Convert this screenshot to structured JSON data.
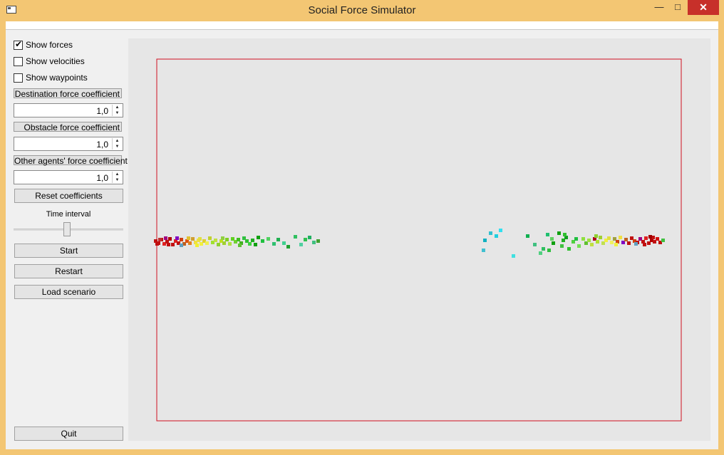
{
  "window": {
    "title": "Social Force Simulator",
    "minimize_glyph": "—",
    "maximize_glyph": "□",
    "close_glyph": "✕"
  },
  "controls": {
    "show_forces": {
      "label": "Show forces",
      "checked": true
    },
    "show_velocities": {
      "label": "Show velocities",
      "checked": false
    },
    "show_waypoints": {
      "label": "Show waypoints",
      "checked": false
    },
    "destination": {
      "label": "Destination force coefficient",
      "value": "1,0"
    },
    "obstacle": {
      "label": "Obstacle force coefficient",
      "value": "1,0"
    },
    "other_agents": {
      "label": "Other agents' force coefficient",
      "value": "1,0"
    },
    "reset_label": "Reset coefficients",
    "time_interval_label": "Time interval",
    "start_label": "Start",
    "restart_label": "Restart",
    "load_label": "Load scenario",
    "quit_label": "Quit"
  },
  "simulation": {
    "boundary_color": "#d01020",
    "left_group": [
      [
        "#c01010",
        0,
        0
      ],
      [
        "#c01010",
        4,
        3
      ],
      [
        "#c01010",
        8,
        -2
      ],
      [
        "#e02020",
        12,
        4
      ],
      [
        "#c01010",
        16,
        1
      ],
      [
        "#b00000",
        20,
        -3
      ],
      [
        "#c01010",
        24,
        5
      ],
      [
        "#e02020",
        28,
        0
      ],
      [
        "#c01010",
        32,
        3
      ],
      [
        "#d04010",
        36,
        -2
      ],
      [
        "#c06020",
        40,
        4
      ],
      [
        "#e05010",
        44,
        0
      ],
      [
        "#e08020",
        48,
        3
      ],
      [
        "#d0a030",
        52,
        -3
      ],
      [
        "#f0e040",
        56,
        2
      ],
      [
        "#f0e040",
        60,
        -1
      ],
      [
        "#f0f040",
        64,
        4
      ],
      [
        "#e0d030",
        68,
        0
      ],
      [
        "#f0f050",
        72,
        3
      ],
      [
        "#c0d030",
        76,
        -4
      ],
      [
        "#a0e030",
        80,
        2
      ],
      [
        "#c0e040",
        84,
        -1
      ],
      [
        "#90d030",
        88,
        5
      ],
      [
        "#c0e020",
        92,
        0
      ],
      [
        "#a0d030",
        96,
        3
      ],
      [
        "#80d020",
        100,
        -2
      ],
      [
        "#b0e040",
        104,
        4
      ],
      [
        "#60d020",
        108,
        -3
      ],
      [
        "#70d030",
        112,
        1
      ],
      [
        "#40c020",
        116,
        -2
      ],
      [
        "#40b020",
        120,
        3
      ],
      [
        "#30c040",
        124,
        -4
      ],
      [
        "#30c030",
        128,
        0
      ],
      [
        "#40d040",
        132,
        4
      ],
      [
        "#20b020",
        136,
        -1
      ],
      [
        "#10a010",
        140,
        5
      ],
      [
        "#10a010",
        144,
        -5
      ],
      [
        "#20c040",
        150,
        0
      ],
      [
        "#50d060",
        158,
        -3
      ],
      [
        "#30c070",
        166,
        4
      ],
      [
        "#20b050",
        172,
        -2
      ],
      [
        "#40d090",
        180,
        3
      ],
      [
        "#20a030",
        186,
        8
      ],
      [
        "#30c060",
        196,
        -6
      ],
      [
        "#50d0a0",
        204,
        5
      ],
      [
        "#30c050",
        210,
        -2
      ],
      [
        "#20b060",
        216,
        -5
      ],
      [
        "#40c080",
        222,
        2
      ],
      [
        "#40a030",
        228,
        0
      ],
      [
        "#c03030",
        6,
        -2
      ],
      [
        "#a00080",
        14,
        -4
      ],
      [
        "#8000c0",
        30,
        -4
      ],
      [
        "#60a0c0",
        36,
        6
      ],
      [
        "#c01010",
        2,
        4
      ],
      [
        "#f0f030",
        58,
        6
      ],
      [
        "#e0e040",
        62,
        -3
      ],
      [
        "#90d040",
        94,
        -4
      ],
      [
        "#60c030",
        118,
        6
      ],
      [
        "#e0c030",
        46,
        -4
      ],
      [
        "#c01010",
        18,
        5
      ]
    ],
    "right_group": [
      [
        "#10b0c0",
        0,
        0
      ],
      [
        "#30c0d0",
        8,
        -10
      ],
      [
        "#20d0e0",
        16,
        -6
      ],
      [
        "#30e0f0",
        22,
        -14
      ],
      [
        "#40c0d0",
        -2,
        14
      ],
      [
        "#40e0e0",
        40,
        22
      ],
      [
        "#10b050",
        60,
        -6
      ],
      [
        "#40c080",
        70,
        6
      ],
      [
        "#50d080",
        78,
        18
      ],
      [
        "#30c060",
        82,
        12
      ],
      [
        "#20c070",
        88,
        -8
      ],
      [
        "#10a010",
        96,
        4
      ],
      [
        "#30c040",
        90,
        14
      ],
      [
        "#60d060",
        94,
        -2
      ],
      [
        "#10a010",
        104,
        -10
      ],
      [
        "#40c040",
        108,
        8
      ],
      [
        "#20b020",
        110,
        0
      ],
      [
        "#10a020",
        114,
        -4
      ],
      [
        "#30c030",
        118,
        12
      ],
      [
        "#50d040",
        124,
        2
      ],
      [
        "#20c040",
        128,
        -2
      ],
      [
        "#70e050",
        132,
        8
      ],
      [
        "#90e040",
        138,
        -2
      ],
      [
        "#60c030",
        142,
        4
      ],
      [
        "#a0e040",
        146,
        0
      ],
      [
        "#c0e040",
        150,
        6
      ],
      [
        "#b00020",
        154,
        -2
      ],
      [
        "#b0e030",
        158,
        2
      ],
      [
        "#a0d030",
        162,
        -4
      ],
      [
        "#c0e050",
        166,
        4
      ],
      [
        "#f0f040",
        170,
        0
      ],
      [
        "#e0e040",
        174,
        -3
      ],
      [
        "#f0f060",
        178,
        3
      ],
      [
        "#a0a040",
        182,
        -2
      ],
      [
        "#d04010",
        186,
        2
      ],
      [
        "#f0e040",
        190,
        -4
      ],
      [
        "#8000c0",
        194,
        3
      ],
      [
        "#c06020",
        198,
        -1
      ],
      [
        "#c01010",
        202,
        4
      ],
      [
        "#c01010",
        206,
        -3
      ],
      [
        "#d04010",
        210,
        1
      ],
      [
        "#c01010",
        214,
        3
      ],
      [
        "#a00080",
        218,
        -2
      ],
      [
        "#c01010",
        222,
        2
      ],
      [
        "#e02020",
        226,
        -3
      ],
      [
        "#c01010",
        230,
        4
      ],
      [
        "#b00000",
        234,
        0
      ],
      [
        "#c01010",
        238,
        2
      ],
      [
        "#d01010",
        242,
        -2
      ],
      [
        "#c01010",
        246,
        3
      ],
      [
        "#40c040",
        250,
        0
      ],
      [
        "#c01010",
        236,
        -4
      ],
      [
        "#60a0c0",
        212,
        5
      ],
      [
        "#f0f040",
        184,
        6
      ],
      [
        "#c01010",
        224,
        6
      ],
      [
        "#a00000",
        232,
        -5
      ],
      [
        "#90d030",
        156,
        -6
      ],
      [
        "#30c030",
        112,
        -8
      ]
    ]
  }
}
